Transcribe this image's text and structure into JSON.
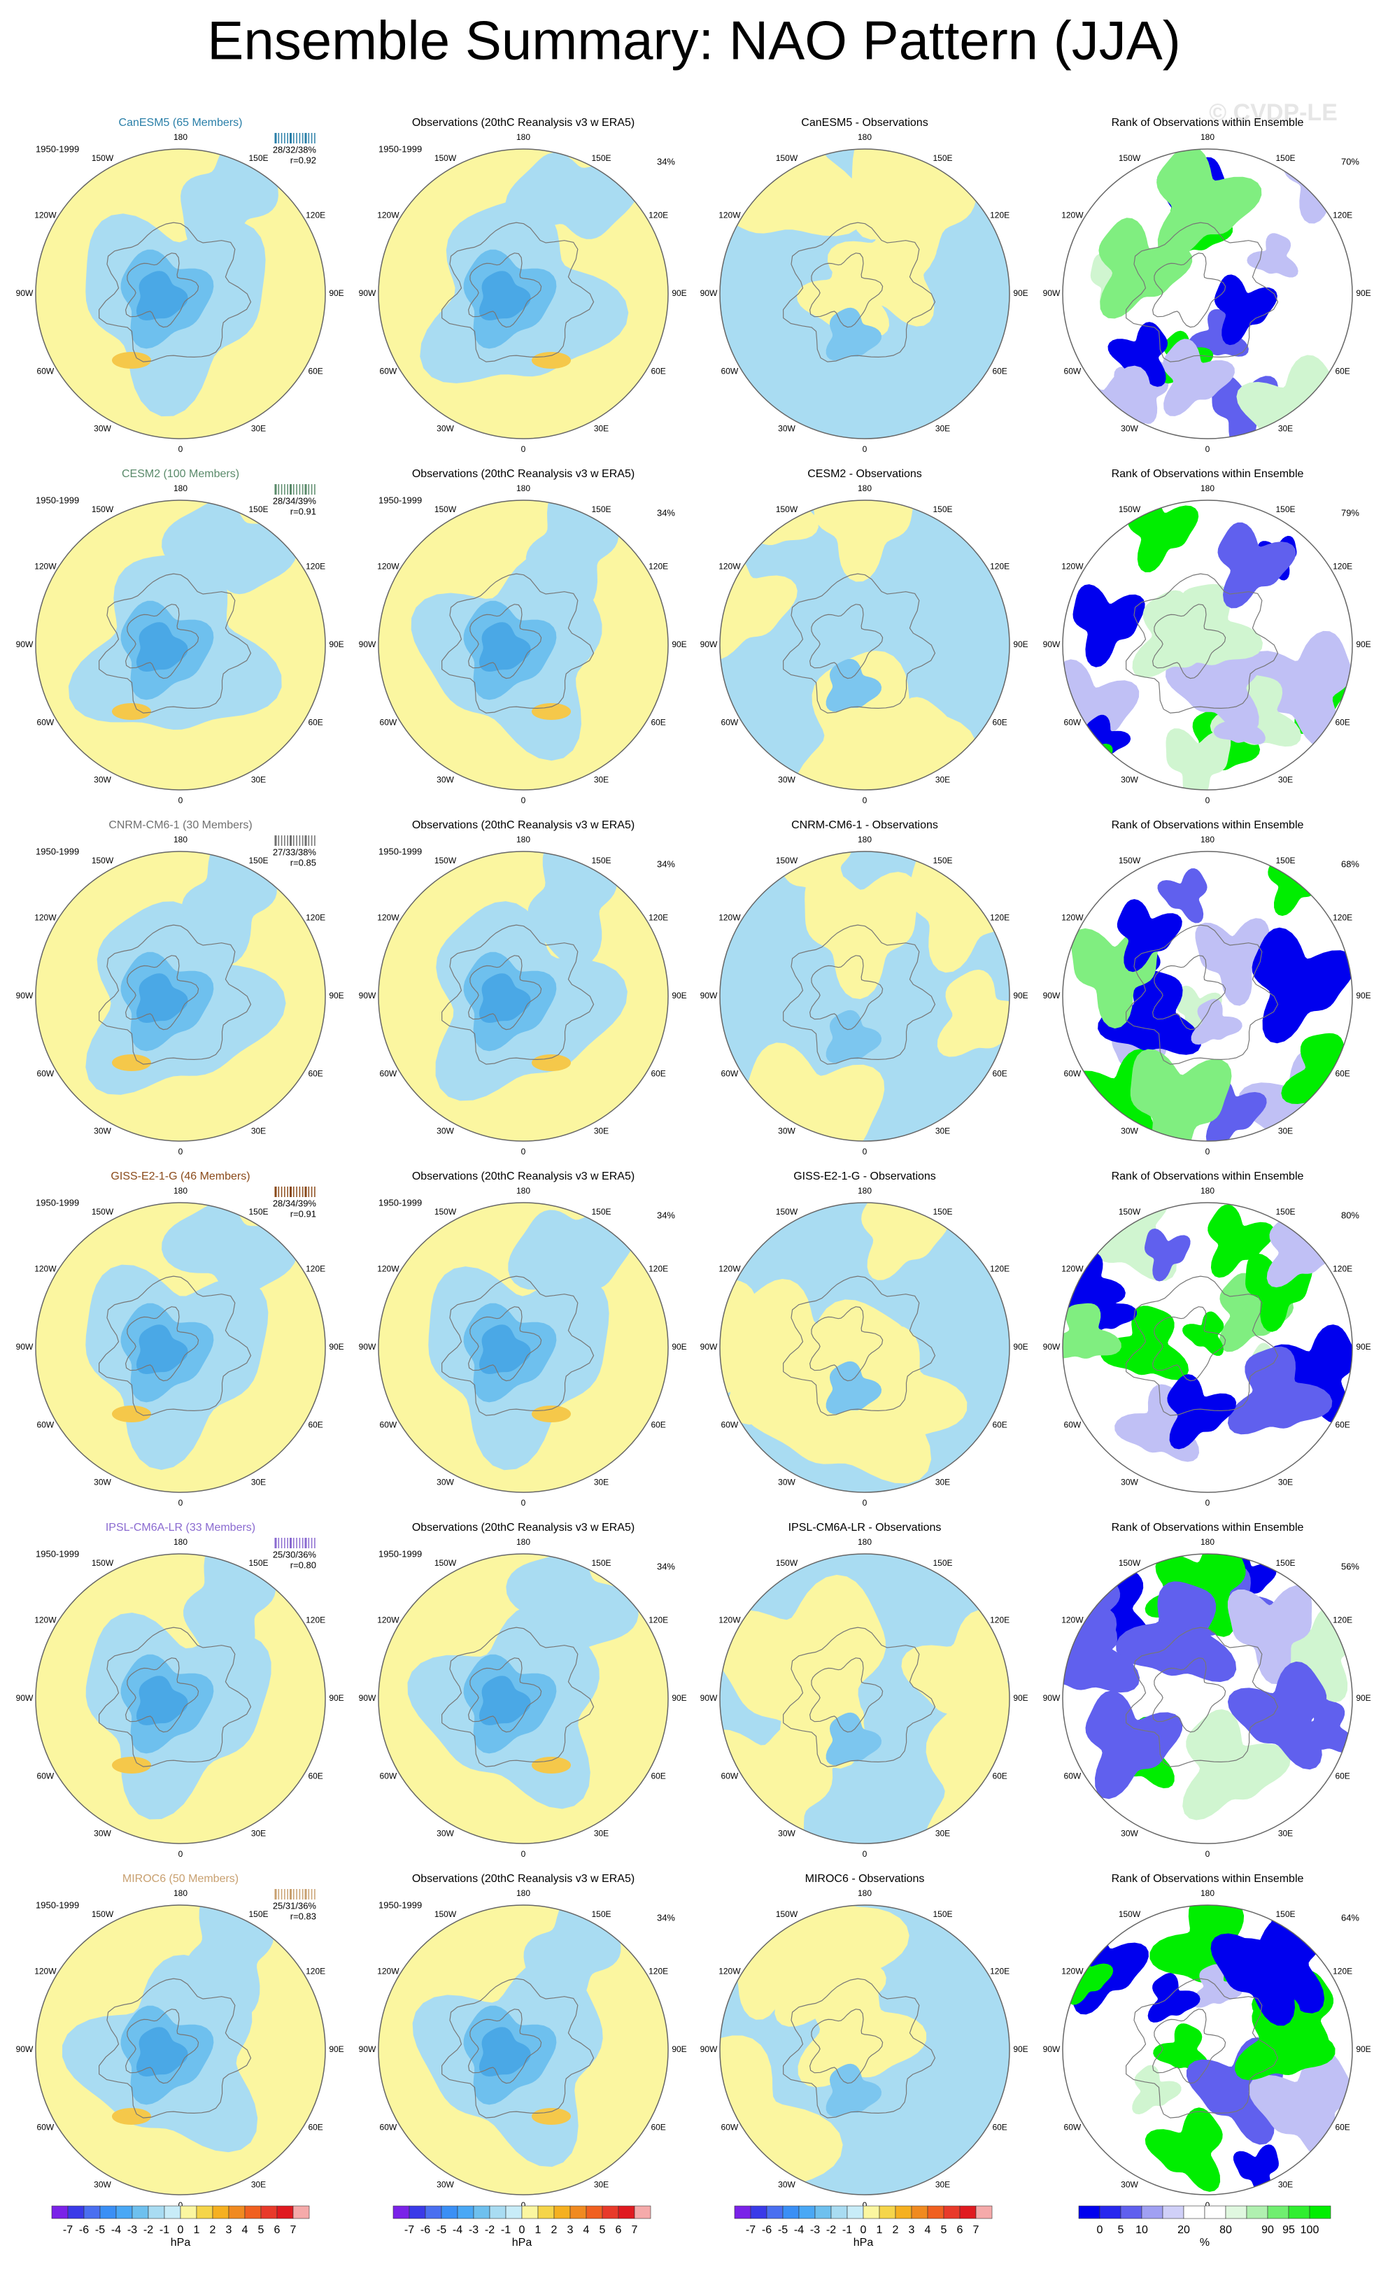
{
  "title": "Ensemble Summary: NAO Pattern (JJA)",
  "watermark": "© CVDP-LE",
  "longitude_labels": [
    "180",
    "150E",
    "120E",
    "90E",
    "60E",
    "30E",
    "0",
    "30W",
    "60W",
    "90W",
    "120W",
    "150W"
  ],
  "rows": [
    {
      "model": "CanESM5 (65 Members)",
      "color": "#2a7fa8",
      "period": "1950-1999",
      "stats": "28/32/38%",
      "r": "r=0.92",
      "obs_title": "Observations (20thC Reanalysis v3 w ERA5)",
      "obs_period": "1950-1999",
      "obs_pct": "34%",
      "diff_title": "CanESM5 - Observations",
      "rank_title": "Rank of Observations within Ensemble",
      "rank_pct": "70%"
    },
    {
      "model": "CESM2 (100 Members)",
      "color": "#5a8a6a",
      "period": "1950-1999",
      "stats": "28/34/39%",
      "r": "r=0.91",
      "obs_title": "Observations (20thC Reanalysis v3 w ERA5)",
      "obs_period": "1950-1999",
      "obs_pct": "34%",
      "diff_title": "CESM2 - Observations",
      "rank_title": "Rank of Observations within Ensemble",
      "rank_pct": "79%"
    },
    {
      "model": "CNRM-CM6-1 (30 Members)",
      "color": "#707070",
      "period": "1950-1999",
      "stats": "27/33/38%",
      "r": "r=0.85",
      "obs_title": "Observations (20thC Reanalysis v3 w ERA5)",
      "obs_period": "1950-1999",
      "obs_pct": "34%",
      "diff_title": "CNRM-CM6-1 - Observations",
      "rank_title": "Rank of Observations within Ensemble",
      "rank_pct": "68%"
    },
    {
      "model": "GISS-E2-1-G (46 Members)",
      "color": "#8a4a1a",
      "period": "1950-1999",
      "stats": "28/34/39%",
      "r": "r=0.91",
      "obs_title": "Observations (20thC Reanalysis v3 w ERA5)",
      "obs_period": "1950-1999",
      "obs_pct": "34%",
      "diff_title": "GISS-E2-1-G - Observations",
      "rank_title": "Rank of Observations within Ensemble",
      "rank_pct": "80%"
    },
    {
      "model": "IPSL-CM6A-LR (33 Members)",
      "color": "#8a6ad0",
      "period": "1950-1999",
      "stats": "25/30/36%",
      "r": "r=0.80",
      "obs_title": "Observations (20thC Reanalysis v3 w ERA5)",
      "obs_period": "1950-1999",
      "obs_pct": "34%",
      "diff_title": "IPSL-CM6A-LR - Observations",
      "rank_title": "Rank of Observations within Ensemble",
      "rank_pct": "56%"
    },
    {
      "model": "MIROC6 (50 Members)",
      "color": "#c8a070",
      "period": "1950-1999",
      "stats": "25/31/36%",
      "r": "r=0.83",
      "obs_title": "Observations (20thC Reanalysis v3 w ERA5)",
      "obs_period": "1950-1999",
      "obs_pct": "34%",
      "diff_title": "MIROC6 - Observations",
      "rank_title": "Rank of Observations within Ensemble",
      "rank_pct": "64%"
    }
  ],
  "colorbars": {
    "pressure": {
      "labels": [
        -7,
        -6,
        -5,
        -4,
        -3,
        -2,
        -1,
        0,
        1,
        2,
        3,
        4,
        5,
        6,
        7
      ],
      "unit": "hPa"
    },
    "rank": {
      "labels": [
        0,
        5,
        10,
        20,
        80,
        90,
        95,
        100
      ],
      "unit": "%"
    }
  }
}
